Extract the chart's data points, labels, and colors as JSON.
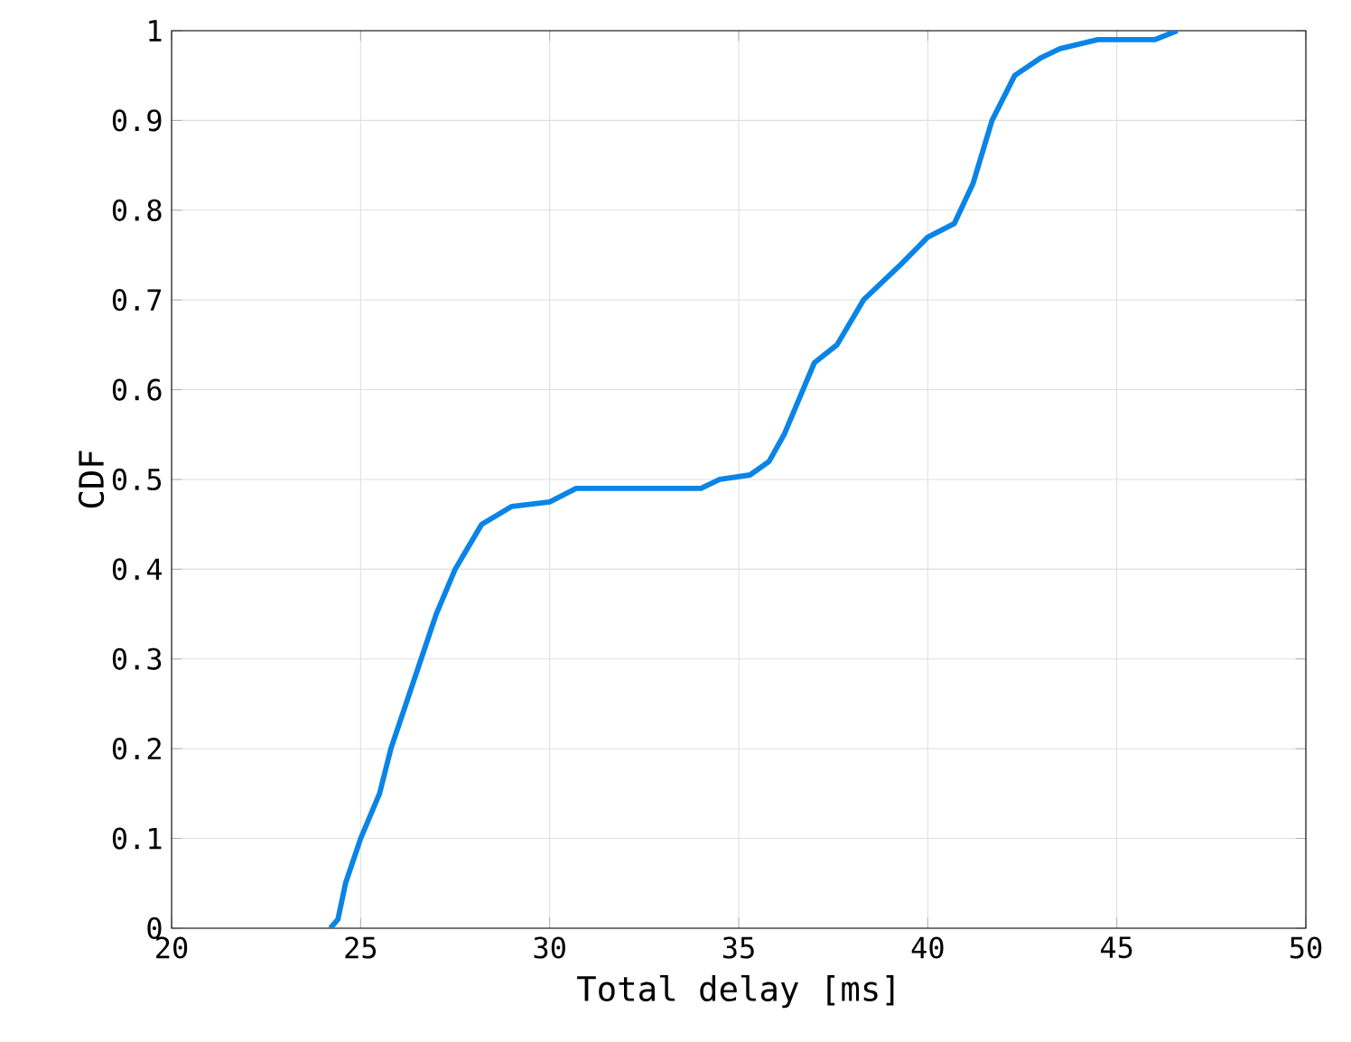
{
  "chart_data": {
    "type": "line",
    "xlabel": "Total delay [ms]",
    "ylabel": "CDF",
    "xlim": [
      20,
      50
    ],
    "ylim": [
      0,
      1
    ],
    "xticks": [
      20,
      25,
      30,
      35,
      40,
      45,
      50
    ],
    "yticks": [
      0,
      0.1,
      0.2,
      0.3,
      0.4,
      0.5,
      0.6,
      0.7,
      0.8,
      0.9,
      1
    ],
    "grid": true,
    "marker": "none",
    "line_style": "solid",
    "series": [
      {
        "color": "#0a84e6",
        "x": [
          24.2,
          24.4,
          24.6,
          25,
          25.5,
          25.8,
          26.2,
          26.6,
          27,
          27.5,
          28.2,
          29,
          30,
          30.7,
          34,
          34.5,
          35.3,
          35.8,
          36.2,
          36.7,
          37,
          37.6,
          38.3,
          39.3,
          40,
          40.7,
          41.2,
          41.7,
          42.3,
          43,
          43.5,
          44.5,
          46,
          46.6
        ],
        "values": [
          0,
          0.01,
          0.05,
          0.1,
          0.15,
          0.2,
          0.25,
          0.3,
          0.35,
          0.4,
          0.45,
          0.47,
          0.475,
          0.49,
          0.49,
          0.5,
          0.505,
          0.52,
          0.55,
          0.6,
          0.63,
          0.65,
          0.7,
          0.74,
          0.77,
          0.785,
          0.83,
          0.9,
          0.95,
          0.97,
          0.98,
          0.99,
          0.99,
          1
        ]
      }
    ]
  }
}
